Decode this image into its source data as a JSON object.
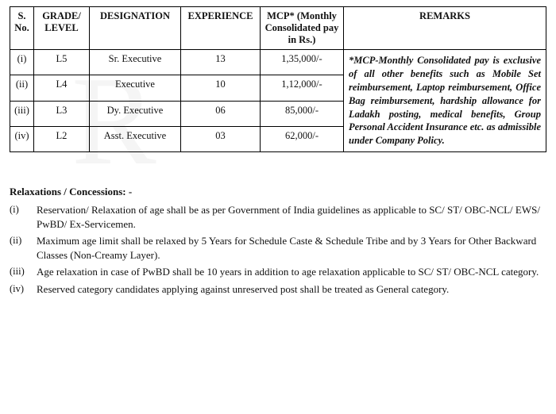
{
  "table": {
    "headers": {
      "sn": "S. No.",
      "grade": "GRADE/ LEVEL",
      "designation": "DESIGNATION",
      "experience": "EXPERIENCE",
      "mcp": "MCP* (Monthly Consolidated pay in Rs.)",
      "remarks": "REMARKS"
    },
    "rows": [
      {
        "sn": "(i)",
        "grade": "L5",
        "designation": "Sr. Executive",
        "experience": "13",
        "mcp": "1,35,000/-"
      },
      {
        "sn": "(ii)",
        "grade": "L4",
        "designation": "Executive",
        "experience": "10",
        "mcp": "1,12,000/-"
      },
      {
        "sn": "(iii)",
        "grade": "L3",
        "designation": "Dy. Executive",
        "experience": "06",
        "mcp": "85,000/-"
      },
      {
        "sn": "(iv)",
        "grade": "L2",
        "designation": "Asst. Executive",
        "experience": "03",
        "mcp": "62,000/-"
      }
    ],
    "remarks_text": "*MCP-Monthly Consolidated pay is exclusive of all other benefits such as Mobile Set reimbursement, Laptop reimbursement, Office Bag reimbursement, hardship allowance for Ladakh posting, medical benefits, Group Personal Accident Insurance etc. as admissible under Company Policy."
  },
  "relaxations": {
    "title": "Relaxations / Concessions: -",
    "items": [
      {
        "num": "(i)",
        "text": "Reservation/ Relaxation of age shall be as per Government of India guidelines as applicable to SC/ ST/ OBC-NCL/ EWS/ PwBD/ Ex-Servicemen."
      },
      {
        "num": "(ii)",
        "text": "Maximum age limit shall be relaxed by 5 Years for Schedule Caste & Schedule Tribe and by 3 Years for Other Backward Classes (Non-Creamy Layer)."
      },
      {
        "num": "(iii)",
        "text": "Age relaxation in case of PwBD shall be 10 years in addition to age relaxation applicable to SC/ ST/ OBC-NCL category."
      },
      {
        "num": "(iv)",
        "text": "Reserved category candidates applying against unreserved post shall be treated as General category."
      }
    ]
  }
}
